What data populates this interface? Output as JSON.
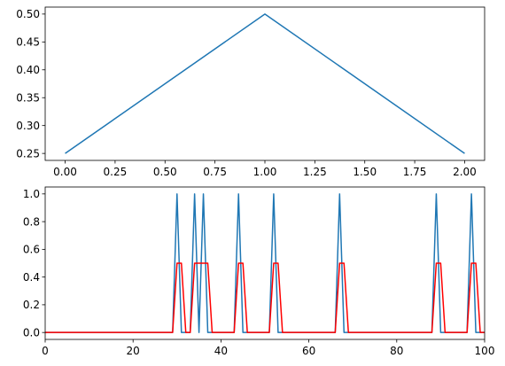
{
  "chart_data": [
    {
      "type": "line",
      "title": "",
      "xlabel": "",
      "ylabel": "",
      "xlim": [
        -0.1,
        2.1
      ],
      "ylim": [
        0.2375,
        0.5125
      ],
      "xticks": [
        0.0,
        0.25,
        0.5,
        0.75,
        1.0,
        1.25,
        1.5,
        1.75,
        2.0
      ],
      "xtick_labels": [
        "0.00",
        "0.25",
        "0.50",
        "0.75",
        "1.00",
        "1.25",
        "1.50",
        "1.75",
        "2.00"
      ],
      "yticks": [
        0.25,
        0.3,
        0.35,
        0.4,
        0.45,
        0.5
      ],
      "ytick_labels": [
        "0.25",
        "0.30",
        "0.35",
        "0.40",
        "0.45",
        "0.50"
      ],
      "grid": false,
      "series": [
        {
          "color": "#1f77b4",
          "x": [
            0,
            1,
            2
          ],
          "y": [
            0.25,
            0.5,
            0.25
          ]
        }
      ]
    },
    {
      "type": "line",
      "title": "",
      "xlabel": "",
      "ylabel": "",
      "xlim": [
        0,
        100
      ],
      "ylim": [
        -0.05,
        1.05
      ],
      "xticks": [
        0,
        20,
        40,
        60,
        80,
        100
      ],
      "xtick_labels": [
        "0",
        "20",
        "40",
        "60",
        "80",
        "100"
      ],
      "yticks": [
        0.0,
        0.2,
        0.4,
        0.6,
        0.8,
        1.0
      ],
      "ytick_labels": [
        "0.0",
        "0.2",
        "0.4",
        "0.6",
        "0.8",
        "1.0"
      ],
      "grid": false,
      "spikes": [
        30,
        34,
        36,
        44,
        52,
        67,
        89,
        97
      ],
      "series": [
        {
          "color": "#1f77b4",
          "kind": "spikes"
        },
        {
          "color": "#ff0000",
          "kind": "smoothed"
        }
      ]
    }
  ]
}
